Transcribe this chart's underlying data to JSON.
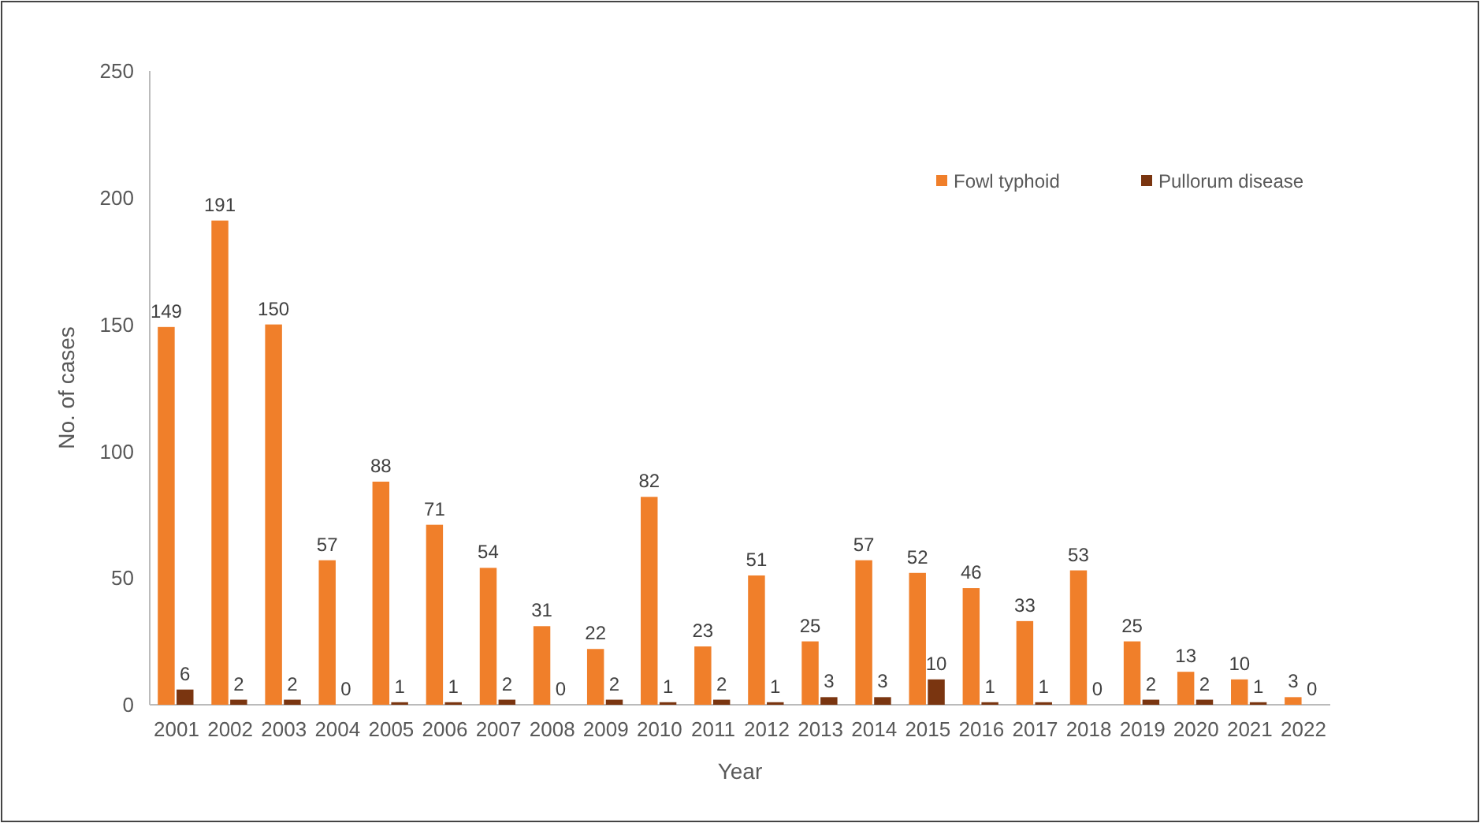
{
  "chart_data": {
    "type": "bar",
    "xlabel": "Year",
    "ylabel": "No. of cases",
    "categories": [
      "2001",
      "2002",
      "2003",
      "2004",
      "2005",
      "2006",
      "2007",
      "2008",
      "2009",
      "2010",
      "2011",
      "2012",
      "2013",
      "2014",
      "2015",
      "2016",
      "2017",
      "2018",
      "2019",
      "2020",
      "2021",
      "2022"
    ],
    "series": [
      {
        "name": "Fowl typhoid",
        "color": "#f07f2a",
        "values": [
          149,
          191,
          150,
          57,
          88,
          71,
          54,
          31,
          22,
          82,
          23,
          51,
          25,
          57,
          52,
          46,
          33,
          53,
          25,
          13,
          10,
          3
        ]
      },
      {
        "name": "Pullorum disease",
        "color": "#7a3510",
        "values": [
          6,
          2,
          2,
          0,
          1,
          1,
          2,
          0,
          2,
          1,
          2,
          1,
          3,
          3,
          10,
          1,
          1,
          0,
          2,
          2,
          1,
          0
        ]
      }
    ],
    "ylim": [
      0,
      250
    ],
    "yticks": [
      0,
      50,
      100,
      150,
      200,
      250
    ],
    "grid": false,
    "legend": "top right",
    "data_labels": true
  }
}
